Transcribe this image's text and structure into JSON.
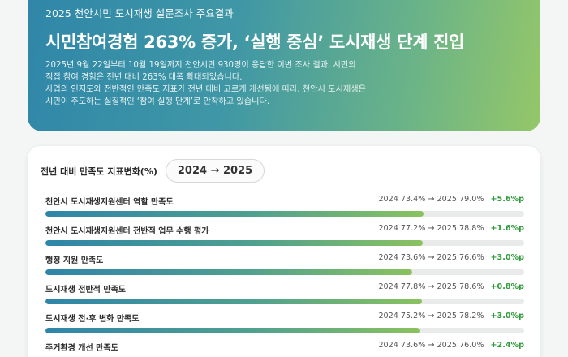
{
  "hero": {
    "subtitle": "2025 천안시민 도시재생 설문조사 주요결과",
    "title": "시민참여경험 263% 증가, ‘실행 중심’ 도시재생 단계 진입",
    "desc_lines": [
      "2025년 9월 22일부터 10월 19일까지 천안시민 930명이 응답한 이번 조사 결과, 시민의",
      "직접 참여 경험은 전년 대비 263% 대폭 확대되었습니다.",
      "사업의 인지도와 전반적인 만족도 지표가 전년 대비 고르게 개선됨에 따라, 천안시 도시재생은",
      "시민이 주도하는 실질적인 ‘참여 실행 단계’로 안착하고 있습니다."
    ]
  },
  "card": {
    "title": "전년 대비 만족도 지표변화(%)",
    "year_toggle": "2024 → 2025"
  },
  "metrics": [
    {
      "label": "천안시 도시재생지원센터 역할 만족도",
      "values": "2024 73.4% → 2025 79.0%",
      "delta": "+5.6%p",
      "fill": 0.79
    },
    {
      "label": "천안시 도시재생지원센터 전반적 업무 수행 평가",
      "values": "2024 77.2% → 2025 78.8%",
      "delta": "+1.6%p",
      "fill": 0.788
    },
    {
      "label": "행정 지원 만족도",
      "values": "2024 73.6% → 2025 76.6%",
      "delta": "+3.0%p",
      "fill": 0.766
    },
    {
      "label": "도시재생 전반적 만족도",
      "values": "2024 77.8% → 2025 78.6%",
      "delta": "+0.8%p",
      "fill": 0.786
    },
    {
      "label": "도시재생 전·후 변화 만족도",
      "values": "2024 75.2% → 2025 78.2%",
      "delta": "+3.0%p",
      "fill": 0.782
    },
    {
      "label": "주거환경 개선 만족도",
      "values": "2024 73.6% → 2025 76.0%",
      "delta": "+2.4%p",
      "fill": 0.76
    }
  ]
}
